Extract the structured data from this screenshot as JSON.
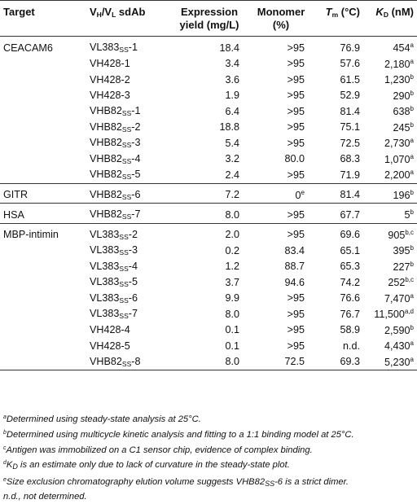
{
  "header": {
    "target": "Target",
    "sdab_v1": "V",
    "sdab_s1": "H",
    "sdab_slash": "/V",
    "sdab_s2": "L",
    "sdab_rest": " sdAb",
    "yield_1": "Expression",
    "yield_2": "yield (mg/L)",
    "mono_1": "Monomer",
    "mono_2": "(%)",
    "tm_t": "T",
    "tm_s": "m",
    "tm_rest": " (°C)",
    "kd_k": "K",
    "kd_s": "D",
    "kd_rest": " (nM)"
  },
  "rows": [
    {
      "target": "CEACAM6",
      "sdab": "VL383",
      "sub": "SS",
      "suf": "-1",
      "yield": "18.4",
      "mono": ">95",
      "mono_sup": "",
      "tm": "76.9",
      "kd": "454",
      "kd_sup": "a"
    },
    {
      "target": "",
      "sdab": "VH428-1",
      "sub": "",
      "suf": "",
      "yield": "3.4",
      "mono": ">95",
      "mono_sup": "",
      "tm": "57.6",
      "kd": "2,180",
      "kd_sup": "a"
    },
    {
      "target": "",
      "sdab": "VH428-2",
      "sub": "",
      "suf": "",
      "yield": "3.6",
      "mono": ">95",
      "mono_sup": "",
      "tm": "61.5",
      "kd": "1,230",
      "kd_sup": "b"
    },
    {
      "target": "",
      "sdab": "VH428-3",
      "sub": "",
      "suf": "",
      "yield": "1.9",
      "mono": ">95",
      "mono_sup": "",
      "tm": "52.9",
      "kd": "290",
      "kd_sup": "b"
    },
    {
      "target": "",
      "sdab": "VHB82",
      "sub": "SS",
      "suf": "-1",
      "yield": "6.4",
      "mono": ">95",
      "mono_sup": "",
      "tm": "81.4",
      "kd": "638",
      "kd_sup": "b"
    },
    {
      "target": "",
      "sdab": "VHB82",
      "sub": "SS",
      "suf": "-2",
      "yield": "18.8",
      "mono": ">95",
      "mono_sup": "",
      "tm": "75.1",
      "kd": "245",
      "kd_sup": "b"
    },
    {
      "target": "",
      "sdab": "VHB82",
      "sub": "SS",
      "suf": "-3",
      "yield": "5.4",
      "mono": ">95",
      "mono_sup": "",
      "tm": "72.5",
      "kd": "2,730",
      "kd_sup": "a"
    },
    {
      "target": "",
      "sdab": "VHB82",
      "sub": "SS",
      "suf": "-4",
      "yield": "3.2",
      "mono": "80.0",
      "mono_sup": "",
      "tm": "68.3",
      "kd": "1,070",
      "kd_sup": "a"
    },
    {
      "target": "",
      "sdab": "VHB82",
      "sub": "SS",
      "suf": "-5",
      "yield": "2.4",
      "mono": ">95",
      "mono_sup": "",
      "tm": "71.9",
      "kd": "2,200",
      "kd_sup": "a"
    },
    {
      "target": "GITR",
      "sdab": "VHB82",
      "sub": "SS",
      "suf": "-6",
      "yield": "7.2",
      "mono": "0",
      "mono_sup": "e",
      "tm": "81.4",
      "kd": "196",
      "kd_sup": "b"
    },
    {
      "target": "HSA",
      "sdab": "VHB82",
      "sub": "SS",
      "suf": "-7",
      "yield": "8.0",
      "mono": ">95",
      "mono_sup": "",
      "tm": "67.7",
      "kd": "5",
      "kd_sup": "b"
    },
    {
      "target": "MBP-intimin",
      "sdab": "VL383",
      "sub": "SS",
      "suf": "-2",
      "yield": "2.0",
      "mono": ">95",
      "mono_sup": "",
      "tm": "69.6",
      "kd": "905",
      "kd_sup": "b,c"
    },
    {
      "target": "",
      "sdab": "VL383",
      "sub": "SS",
      "suf": "-3",
      "yield": "0.2",
      "mono": "83.4",
      "mono_sup": "",
      "tm": "65.1",
      "kd": "395",
      "kd_sup": "b"
    },
    {
      "target": "",
      "sdab": "VL383",
      "sub": "SS",
      "suf": "-4",
      "yield": "1.2",
      "mono": "88.7",
      "mono_sup": "",
      "tm": "65.3",
      "kd": "227",
      "kd_sup": "b"
    },
    {
      "target": "",
      "sdab": "VL383",
      "sub": "SS",
      "suf": "-5",
      "yield": "3.7",
      "mono": "94.6",
      "mono_sup": "",
      "tm": "74.2",
      "kd": "252",
      "kd_sup": "b,c"
    },
    {
      "target": "",
      "sdab": "VL383",
      "sub": "SS",
      "suf": "-6",
      "yield": "9.9",
      "mono": ">95",
      "mono_sup": "",
      "tm": "76.6",
      "kd": "7,470",
      "kd_sup": "a"
    },
    {
      "target": "",
      "sdab": "VL383",
      "sub": "SS",
      "suf": "-7",
      "yield": "8.0",
      "mono": ">95",
      "mono_sup": "",
      "tm": "76.7",
      "kd": "11,500",
      "kd_sup": "a,d"
    },
    {
      "target": "",
      "sdab": "VH428-4",
      "sub": "",
      "suf": "",
      "yield": "0.1",
      "mono": ">95",
      "mono_sup": "",
      "tm": "58.9",
      "kd": "2,590",
      "kd_sup": "b"
    },
    {
      "target": "",
      "sdab": "VH428-5",
      "sub": "",
      "suf": "",
      "yield": "0.1",
      "mono": ">95",
      "mono_sup": "",
      "tm": "n.d.",
      "kd": "4,430",
      "kd_sup": "a"
    },
    {
      "target": "",
      "sdab": "VHB82",
      "sub": "SS",
      "suf": "-8",
      "yield": "8.0",
      "mono": "72.5",
      "mono_sup": "",
      "tm": "69.3",
      "kd": "5,230",
      "kd_sup": "a"
    }
  ],
  "notes": {
    "a_mark": "a",
    "a_text": "Determined using steady-state analysis at 25°C.",
    "b_mark": "b",
    "b_text": "Determined using multicycle kinetic analysis and fitting to a 1:1 binding model at 25°C.",
    "c_mark": "c",
    "c_text": "Antigen was immobilized on a C1 sensor chip, evidence of complex binding.",
    "d_mark": "d",
    "d_k": "K",
    "d_sub": "D",
    "d_text": " is an estimate only due to lack of curvature in the steady-state plot.",
    "e_mark": "e",
    "e_text1": "Size exclusion chromatography elution volume suggests VHB82",
    "e_sub": "SS",
    "e_text2": "-6 is a strict dimer.",
    "nd_text": "n.d., not determined."
  }
}
